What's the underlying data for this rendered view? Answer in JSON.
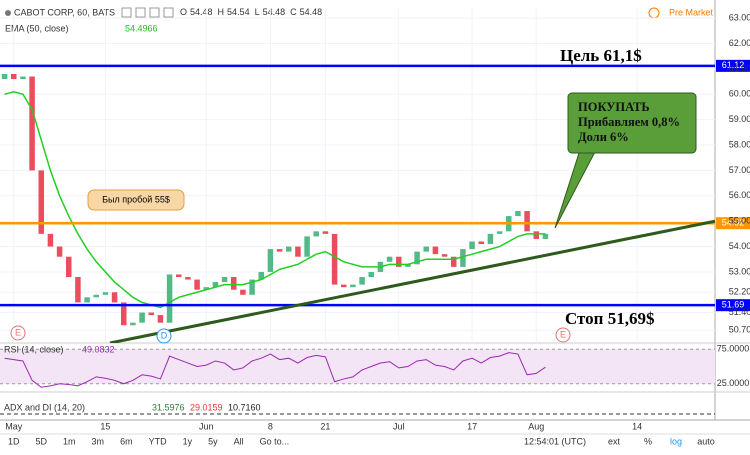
{
  "header": {
    "symbol": "CABOT CORP, 60, BATS",
    "ohlc": [
      {
        "label": "O",
        "value": 54.48
      },
      {
        "label": "H",
        "value": 54.54
      },
      {
        "label": "L",
        "value": 54.48
      },
      {
        "label": "C",
        "value": 54.48
      }
    ],
    "ema_value": 54.4966,
    "market_status": "Pre Market"
  },
  "chart_data": [
    {
      "type": "candlestick",
      "xlim": [
        -0.5,
        77.5
      ],
      "ylim": [
        50.2,
        63.4
      ],
      "xticks": [
        {
          "value": 1,
          "label": "May"
        },
        {
          "value": 11,
          "label": "15"
        },
        {
          "value": 22,
          "label": "Jun"
        },
        {
          "value": 29,
          "label": "8"
        },
        {
          "value": 35,
          "label": "21"
        },
        {
          "value": 43,
          "label": "Jul"
        },
        {
          "value": 51,
          "label": "17"
        },
        {
          "value": 58,
          "label": "Aug"
        },
        {
          "value": 69,
          "label": "14"
        }
      ],
      "yticks": [
        {
          "value": 50.7,
          "label": "50.70"
        },
        {
          "value": 51.4,
          "label": "51.40"
        },
        {
          "value": 52.2,
          "label": "52.20"
        },
        {
          "value": 53,
          "label": "53.00"
        },
        {
          "value": 54,
          "label": "54.00"
        },
        {
          "value": 55,
          "label": "55.00"
        },
        {
          "value": 56,
          "label": "56.00"
        },
        {
          "value": 57,
          "label": "57.00"
        },
        {
          "value": 58,
          "label": "58.00"
        },
        {
          "value": 59,
          "label": "59.00"
        },
        {
          "value": 60,
          "label": "60.00"
        },
        {
          "value": 61,
          "label": "61.00"
        },
        {
          "value": 62,
          "label": "62.00"
        },
        {
          "value": 63,
          "label": "63.00"
        }
      ],
      "grid": true,
      "up_color": "#53b987",
      "down_color": "#eb4d5c",
      "open": [
        60.6,
        60.8,
        60.6,
        60.7,
        57.0,
        54.5,
        54.0,
        53.6,
        52.8,
        51.8,
        52.0,
        52.1,
        52.2,
        51.8,
        50.9,
        51.0,
        51.4,
        51.3,
        51.0,
        52.9,
        52.8,
        52.7,
        52.3,
        52.4,
        52.6,
        52.8,
        52.3,
        52.1,
        52.7,
        53.0,
        53.9,
        53.8,
        54.0,
        53.6,
        54.4,
        54.6,
        54.5,
        52.5,
        52.4,
        52.5,
        52.8,
        53.0,
        53.4,
        53.6,
        53.2,
        53.3,
        53.8,
        54.0,
        53.7,
        53.6,
        53.2,
        53.9,
        54.2,
        54.1,
        54.5,
        54.6,
        55.2,
        55.4,
        54.6,
        54.3
      ],
      "close": [
        60.8,
        60.6,
        60.7,
        57.0,
        54.5,
        54.0,
        53.6,
        52.8,
        51.8,
        52.0,
        52.1,
        52.2,
        51.8,
        50.9,
        51.0,
        51.4,
        51.3,
        51.0,
        52.9,
        52.8,
        52.7,
        52.3,
        52.4,
        52.6,
        52.8,
        52.3,
        52.1,
        52.7,
        53.0,
        53.9,
        53.8,
        54.0,
        53.6,
        54.4,
        54.6,
        54.5,
        52.5,
        52.4,
        52.5,
        52.8,
        53.0,
        53.4,
        53.6,
        53.2,
        53.3,
        53.8,
        54.0,
        53.7,
        53.6,
        53.2,
        53.9,
        54.2,
        54.1,
        54.5,
        54.6,
        55.2,
        55.4,
        54.6,
        54.3,
        54.5
      ],
      "ema": {
        "name": "EMA (50, close)",
        "color": "#20d020",
        "values": [
          60.0,
          60.1,
          60.0,
          59.4,
          58.2,
          57.0,
          56.0,
          55.2,
          54.5,
          53.9,
          53.4,
          53.0,
          52.6,
          52.3,
          52.0,
          51.8,
          51.7,
          51.6,
          51.8,
          52.0,
          52.1,
          52.2,
          52.3,
          52.4,
          52.5,
          52.5,
          52.5,
          52.6,
          52.7,
          52.9,
          53.1,
          53.2,
          53.3,
          53.5,
          53.7,
          53.8,
          53.6,
          53.4,
          53.3,
          53.2,
          53.2,
          53.2,
          53.3,
          53.3,
          53.3,
          53.4,
          53.5,
          53.5,
          53.5,
          53.5,
          53.6,
          53.7,
          53.8,
          53.9,
          54.0,
          54.2,
          54.4,
          54.5,
          54.5,
          54.5
        ]
      },
      "hlines": [
        {
          "value": 61.12,
          "color": "#0000ff",
          "label": "Цель 61,1$"
        },
        {
          "value": 54.92,
          "color": "#ff9800"
        },
        {
          "value": 51.69,
          "color": "#0000ff",
          "label": "Стоп 51,69$"
        }
      ],
      "trendline": {
        "color": "#2e5a1c",
        "x": [
          11.5,
          77.5
        ],
        "y": [
          50.2,
          55.0
        ]
      },
      "annotations": [
        {
          "text": "Был пробой 55$"
        },
        {
          "lines": [
            "ПОКУПАТЬ",
            "Прибавляем 0,8%",
            "Доли 6%"
          ]
        }
      ]
    },
    {
      "type": "line",
      "title": "RSI (14, close)",
      "value_label": "49.0832",
      "color": "#9c27b0",
      "ylim": [
        16,
        84
      ],
      "yticks": [
        {
          "value": 75,
          "label": "75.0000"
        },
        {
          "value": 25,
          "label": "25.0000"
        }
      ],
      "values": [
        62,
        60,
        58,
        30,
        20,
        22,
        25,
        24,
        22,
        28,
        35,
        33,
        30,
        25,
        30,
        38,
        36,
        32,
        65,
        60,
        55,
        50,
        52,
        58,
        55,
        45,
        48,
        58,
        62,
        68,
        60,
        62,
        55,
        63,
        66,
        64,
        28,
        32,
        35,
        45,
        50,
        55,
        57,
        48,
        50,
        58,
        60,
        52,
        50,
        45,
        58,
        62,
        55,
        63,
        65,
        70,
        68,
        38,
        40,
        49
      ]
    },
    {
      "type": "indicator",
      "title": "ADX and DI (14, 20)",
      "series": [
        {
          "value_label": "31.5976",
          "color": "#2e7d32"
        },
        {
          "value_label": "29.0159",
          "color": "#e53935"
        },
        {
          "value_label": "10.7160",
          "color": "#222"
        }
      ]
    }
  ],
  "toolbar": {
    "ranges": [
      "1D",
      "5D",
      "1m",
      "3m",
      "6m",
      "YTD",
      "1y",
      "5y",
      "All",
      "Go to..."
    ],
    "time": "12:54:01 (UTC)",
    "options": [
      "ext",
      "%",
      "log",
      "auto"
    ]
  }
}
